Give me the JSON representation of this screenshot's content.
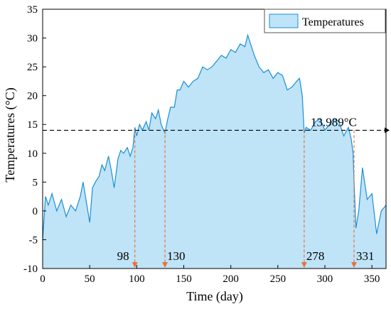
{
  "chart_data": {
    "type": "area",
    "xlabel": "Time (day)",
    "ylabel": "Temperatures (°C)",
    "xlim": [
      0,
      365
    ],
    "ylim": [
      -10,
      35
    ],
    "xticks": [
      0,
      50,
      100,
      150,
      200,
      250,
      300,
      350
    ],
    "yticks": [
      -10,
      -5,
      0,
      5,
      10,
      15,
      20,
      25,
      30,
      35
    ],
    "grid": false,
    "legend_position": "top-right",
    "colors": {
      "line": "#1a8fd6",
      "fill": "#bfe3f7",
      "marker": "#e8743b",
      "reference": "#000000"
    },
    "series": [
      {
        "name": "Temperatures",
        "x": [
          0,
          3,
          6,
          10,
          15,
          20,
          25,
          30,
          35,
          40,
          43,
          46,
          50,
          53,
          56,
          60,
          63,
          66,
          70,
          73,
          76,
          80,
          83,
          86,
          90,
          93,
          96,
          98,
          100,
          103,
          106,
          110,
          113,
          116,
          120,
          123,
          126,
          130,
          133,
          136,
          140,
          143,
          146,
          150,
          155,
          160,
          165,
          170,
          175,
          180,
          185,
          190,
          195,
          200,
          205,
          210,
          215,
          218,
          221,
          225,
          230,
          235,
          240,
          245,
          250,
          255,
          260,
          265,
          270,
          273,
          276,
          278,
          280,
          285,
          290,
          295,
          300,
          305,
          310,
          315,
          320,
          325,
          328,
          330,
          331,
          333,
          336,
          340,
          345,
          350,
          355,
          360,
          365
        ],
        "values": [
          -5,
          2.5,
          1,
          3,
          0,
          2,
          -1,
          1,
          0,
          2.5,
          5,
          2,
          -2,
          4,
          5,
          6,
          8,
          7,
          9.5,
          7,
          4,
          9,
          10.5,
          10,
          11,
          9.5,
          11,
          14.5,
          13,
          15,
          14,
          15.5,
          14,
          17,
          16,
          17.5,
          15,
          13.5,
          16,
          18,
          18,
          21,
          21,
          22.5,
          21.5,
          22.5,
          23,
          25,
          24.5,
          25,
          26,
          27,
          26.5,
          28,
          27.5,
          29,
          28.5,
          30.5,
          29,
          27,
          25,
          24,
          24.5,
          23,
          24,
          23.5,
          21,
          21.5,
          22.5,
          23,
          20,
          13.5,
          14.5,
          14,
          15.5,
          16,
          14,
          15,
          16,
          15.5,
          13,
          14.5,
          12.5,
          10,
          5,
          -3,
          0,
          7.5,
          2,
          3,
          -4,
          0,
          1
        ]
      }
    ],
    "reference_line": {
      "value": 13.989,
      "label": "13.989°C"
    },
    "markers": [
      {
        "x": 98,
        "label": "98"
      },
      {
        "x": 130,
        "label": "130"
      },
      {
        "x": 278,
        "label": "278"
      },
      {
        "x": 331,
        "label": "331"
      }
    ]
  }
}
